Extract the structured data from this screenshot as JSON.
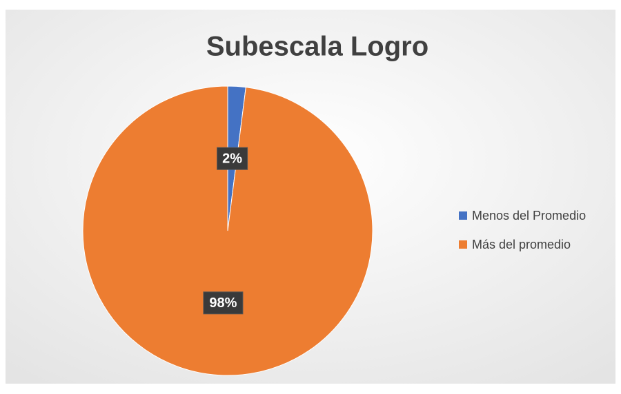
{
  "chart_data": {
    "type": "pie",
    "title": "Subescala Logro",
    "categories": [
      "Menos del Promedio",
      "Más del promedio"
    ],
    "values": [
      2,
      98
    ],
    "value_labels": [
      "2%",
      "98%"
    ],
    "colors": [
      "#4472c4",
      "#ed7d31"
    ],
    "legend": "right"
  }
}
